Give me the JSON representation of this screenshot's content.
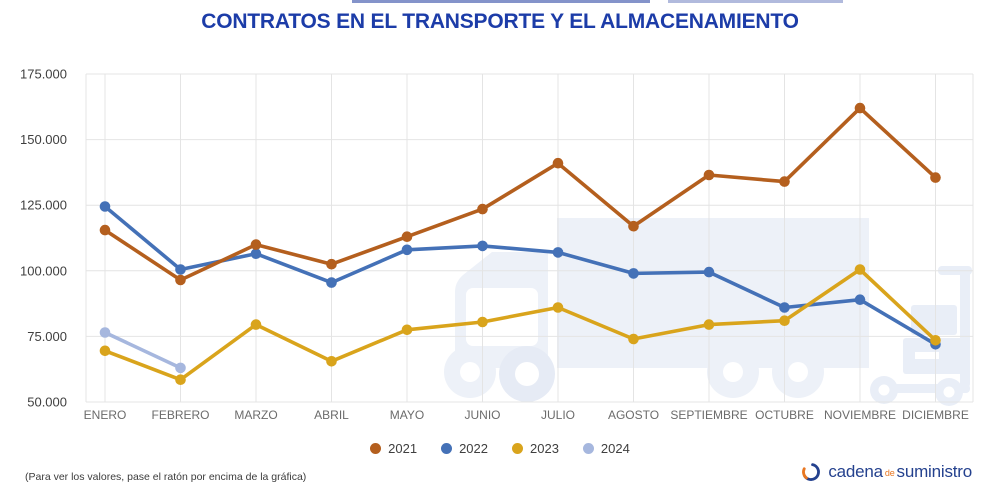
{
  "title": "CONTRATOS EN EL TRANSPORTE Y EL ALMACENAMIENTO",
  "colors": {
    "title": "#1c3ca8",
    "grid": "#e4e4e4",
    "y_tick_text": "#3f3f3f",
    "x_tick_text": "#6b6b6b",
    "watermark": "#edf1f8",
    "logo_blue": "#24418e",
    "logo_orange": "#e87722"
  },
  "chart_data": {
    "type": "line",
    "title": "CONTRATOS EN EL TRANSPORTE Y EL ALMACENAMIENTO",
    "categories": [
      "ENERO",
      "FEBRERO",
      "MARZO",
      "ABRIL",
      "MAYO",
      "JUNIO",
      "JULIO",
      "AGOSTO",
      "SEPTIEMBRE",
      "OCTUBRE",
      "NOVIEMBRE",
      "DICIEMBRE"
    ],
    "series": [
      {
        "name": "2021",
        "color": "#b45f1e",
        "values": [
          115500,
          96500,
          110000,
          102500,
          113000,
          123500,
          141000,
          117000,
          136500,
          134000,
          162000,
          135500
        ]
      },
      {
        "name": "2022",
        "color": "#4471b7",
        "values": [
          124500,
          100500,
          106500,
          95500,
          108000,
          109500,
          107000,
          99000,
          99500,
          86000,
          89000,
          72000
        ]
      },
      {
        "name": "2023",
        "color": "#d9a41c",
        "values": [
          69500,
          58500,
          79500,
          65500,
          77500,
          80500,
          86000,
          74000,
          79500,
          81000,
          100500,
          73500
        ]
      },
      {
        "name": "2024",
        "color": "#a6b7de",
        "values": [
          76500,
          63000,
          null,
          null,
          null,
          null,
          null,
          null,
          null,
          null,
          null,
          null
        ]
      }
    ],
    "ylim": [
      50000,
      175000
    ],
    "y_ticks": [
      50000,
      75000,
      100000,
      125000,
      150000,
      175000
    ],
    "y_tick_labels": [
      "50.000",
      "75.000",
      "100.000",
      "125.000",
      "150.000",
      "175.000"
    ],
    "grid": true,
    "legend_position": "bottom"
  },
  "footer": {
    "note": "(Para ver los valores, pase el ratón por encima de la gráfica)",
    "brand": {
      "word1": "cadena",
      "word2": "de",
      "word3": "suministro"
    }
  }
}
